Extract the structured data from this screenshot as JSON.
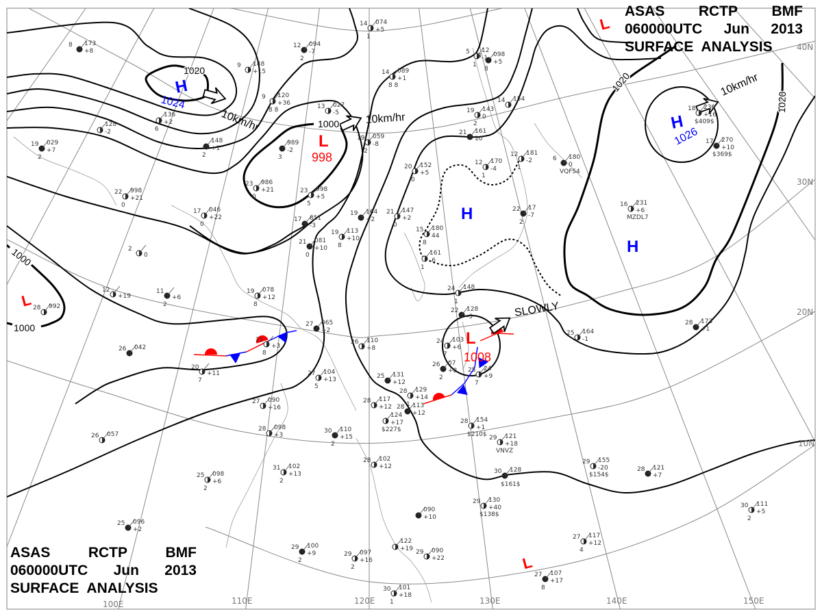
{
  "title": {
    "line1": [
      "ASAS",
      "RCTP",
      "BMF"
    ],
    "line2": [
      "060000UTC",
      "Jun",
      "2013"
    ],
    "line3": "SURFACE ANALYSIS"
  },
  "colors": {
    "high": "#0000ff",
    "low": "#ff0000",
    "isobar": "#000000",
    "grid": "#888888",
    "coast": "#999999",
    "cold_front": "#0000ff",
    "warm_front": "#ff0000"
  },
  "pressure_systems": {
    "high_nw": {
      "symbol": "H",
      "value": "1024"
    },
    "low_n": {
      "symbol": "L",
      "value": "998"
    },
    "high_ne": {
      "symbol": "H",
      "value": "1026"
    },
    "high_center": {
      "symbol": "H"
    },
    "high_east": {
      "symbol": "H"
    },
    "low_west": {
      "symbol": "L"
    },
    "low_taiwan": {
      "symbol": "L",
      "value": "1008"
    },
    "low_ne_corner": {
      "symbol": "L"
    },
    "low_south": {
      "symbol": "L"
    }
  },
  "isobar_labels": {
    "a": "1020",
    "b": "1000",
    "c": "1000",
    "d": "1000",
    "e": "1020",
    "f": "1020"
  },
  "motion_labels": {
    "high_nw": "10km/hr",
    "low_n": "10km/hr",
    "high_ne": "10km/hr",
    "low_taiwan": "SLOWLY"
  },
  "grid_labels": {
    "lat": [
      "40N",
      "30N",
      "20N",
      "10N"
    ],
    "lon": [
      "100E",
      "110E",
      "120E",
      "130E",
      "140E",
      "150E"
    ]
  },
  "stations": [
    {
      "t": "8",
      "p": "173",
      "tend": "+8",
      "x": ""
    },
    {
      "t": "",
      "p": "136",
      "tend": "+2",
      "x": "6"
    },
    {
      "t": "",
      "p": "128",
      "tend": "-2",
      "x": ""
    },
    {
      "t": "19",
      "p": "029",
      "tend": "+7",
      "x": "2"
    },
    {
      "t": "22",
      "p": "998",
      "tend": "+21",
      "x": "0"
    },
    {
      "t": "17",
      "p": "046",
      "tend": "+22",
      "x": "0"
    },
    {
      "t": "",
      "p": "148",
      "tend": "+1",
      "x": "2"
    },
    {
      "t": "9",
      "p": "148",
      "tend": "+15",
      "x": ""
    },
    {
      "t": "9",
      "p": "120",
      "tend": "+36",
      "x": "8 8"
    },
    {
      "t": "12",
      "p": "094",
      "tend": "-7",
      "x": "2"
    },
    {
      "t": "14",
      "p": "074",
      "tend": "+5",
      "x": "1"
    },
    {
      "t": "13",
      "p": "027",
      "tend": "-5",
      "x": ""
    },
    {
      "t": "",
      "p": "989",
      "tend": "-2",
      "x": "3"
    },
    {
      "t": "23",
      "p": "986",
      "tend": "+21",
      "x": "0"
    },
    {
      "t": "23",
      "p": "998",
      "tend": "+5",
      "x": "5"
    },
    {
      "t": "17",
      "p": "851",
      "tend": "-3",
      "x": ""
    },
    {
      "t": "19",
      "p": "059",
      "tend": "-8",
      "x": "2"
    },
    {
      "t": "14",
      "p": "089",
      "tend": "+1",
      "x": "8 8"
    },
    {
      "t": "19",
      "p": "164",
      "tend": "+2",
      "x": ""
    },
    {
      "t": "21",
      "p": "147",
      "tend": "+2",
      "x": "0"
    },
    {
      "t": "19",
      "p": "113",
      "tend": "+10",
      "x": "8"
    },
    {
      "t": "21",
      "p": "081",
      "tend": "+10",
      "x": "0"
    },
    {
      "t": "20",
      "p": "152",
      "tend": "+5",
      "x": "0"
    },
    {
      "t": "19",
      "p": "143",
      "tend": "0",
      "x": "2"
    },
    {
      "t": "21",
      "p": "161",
      "tend": "10",
      "x": ""
    },
    {
      "t": "12",
      "p": "170",
      "tend": "-4",
      "x": "1"
    },
    {
      "t": "12",
      "p": "181",
      "tend": "-2",
      "x": "1"
    },
    {
      "t": "6",
      "p": "180",
      "tend": "0",
      "x": "VQFS4"
    },
    {
      "t": "15",
      "p": "180",
      "tend": "44",
      "x": "8"
    },
    {
      "t": "",
      "p": "161",
      "tend": "-6",
      "x": "1"
    },
    {
      "t": "3",
      "p": "098",
      "tend": "+5",
      "x": "8"
    },
    {
      "t": "5",
      "p": "12",
      "tend": "-1",
      "x": "1"
    },
    {
      "t": "14",
      "p": "154",
      "tend": "",
      "x": ""
    },
    {
      "t": "22",
      "p": "17",
      "tend": "-7",
      "x": "2"
    },
    {
      "t": "16",
      "p": "231",
      "tend": "+6",
      "x": "MZDL7"
    },
    {
      "t": "18",
      "p": "236",
      "tend": "+16",
      "x": "$409$"
    },
    {
      "t": "17",
      "p": "270",
      "tend": "+10",
      "x": "$369$"
    },
    {
      "t": "12",
      "p": "",
      "tend": "+19",
      "x": ""
    },
    {
      "t": "2",
      "p": "",
      "tend": "0",
      "x": ""
    },
    {
      "t": "11",
      "p": "",
      "tend": "+6",
      "x": "2"
    },
    {
      "t": "19",
      "p": "078",
      "tend": "+12",
      "x": "8"
    },
    {
      "t": "28",
      "p": "992",
      "tend": "",
      "x": ""
    },
    {
      "t": "26",
      "p": "042",
      "tend": "",
      "x": ""
    },
    {
      "t": "21",
      "p": "",
      "tend": "+3",
      "x": "8"
    },
    {
      "t": "20",
      "p": "",
      "tend": "+11",
      "x": "7"
    },
    {
      "t": "27",
      "p": "065",
      "tend": "+2",
      "x": ""
    },
    {
      "t": "27",
      "p": "104",
      "tend": "+13",
      "x": "5"
    },
    {
      "t": "26",
      "p": "110",
      "tend": "+8",
      "x": ""
    },
    {
      "t": "25",
      "p": "131",
      "tend": "+12",
      "x": ""
    },
    {
      "t": "28",
      "p": "129",
      "tend": "+14",
      "x": "1"
    },
    {
      "t": "28",
      "p": "117",
      "tend": "+12",
      "x": ""
    },
    {
      "t": "28",
      "p": "113",
      "tend": "+12",
      "x": ""
    },
    {
      "t": "",
      "p": "124",
      "tend": "+17",
      "x": "$227$"
    },
    {
      "t": "24",
      "p": "103",
      "tend": "+6",
      "x": "7"
    },
    {
      "t": "26",
      "p": "07",
      "tend": "+8",
      "x": "2"
    },
    {
      "t": "25",
      "p": "24",
      "tend": "+9",
      "x": "7"
    },
    {
      "t": "24",
      "p": "148",
      "tend": "",
      "x": "1"
    },
    {
      "t": "22",
      "p": "128",
      "tend": "-3",
      "x": ""
    },
    {
      "t": "28",
      "p": "154",
      "tend": "+1",
      "x": "$210$"
    },
    {
      "t": "29",
      "p": "121",
      "tend": "+18",
      "x": "VNVZ"
    },
    {
      "t": "30",
      "p": "128",
      "tend": "",
      "x": "$161$"
    },
    {
      "t": "29",
      "p": "130",
      "tend": "+40",
      "x": "$138$"
    },
    {
      "t": "29",
      "p": "155",
      "tend": "-20",
      "x": "$154$"
    },
    {
      "t": "28",
      "p": "121",
      "tend": "+7",
      "x": ""
    },
    {
      "t": "30",
      "p": "111",
      "tend": "+5",
      "x": "2"
    },
    {
      "t": "25",
      "p": "164",
      "tend": "-1",
      "x": ""
    },
    {
      "t": "28",
      "p": "173",
      "tend": "+1",
      "x": ""
    },
    {
      "t": "28",
      "p": "098",
      "tend": "+3",
      "x": ""
    },
    {
      "t": "27",
      "p": "090",
      "tend": "+16",
      "x": ""
    },
    {
      "t": "30",
      "p": "110",
      "tend": "+15",
      "x": "2"
    },
    {
      "t": "31",
      "p": "102",
      "tend": "+13",
      "x": "2"
    },
    {
      "t": "25",
      "p": "098",
      "tend": "+6",
      "x": "2"
    },
    {
      "t": "25",
      "p": "096",
      "tend": "+2",
      "x": ""
    },
    {
      "t": "26",
      "p": "057",
      "tend": "",
      "x": ""
    },
    {
      "t": "28",
      "p": "102",
      "tend": "+12",
      "x": ""
    },
    {
      "t": "",
      "p": "090",
      "tend": "+10",
      "x": ""
    },
    {
      "t": "29",
      "p": "090",
      "tend": "+22",
      "x": ""
    },
    {
      "t": "",
      "p": "122",
      "tend": "+19",
      "x": ""
    },
    {
      "t": "29",
      "p": "100",
      "tend": "+9",
      "x": "2"
    },
    {
      "t": "29",
      "p": "097",
      "tend": "+16",
      "x": "2"
    },
    {
      "t": "30",
      "p": "101",
      "tend": "+18",
      "x": "1"
    },
    {
      "t": "27",
      "p": "107",
      "tend": "+17",
      "x": "8"
    },
    {
      "t": "27",
      "p": "117",
      "tend": "+12",
      "x": "4"
    }
  ]
}
